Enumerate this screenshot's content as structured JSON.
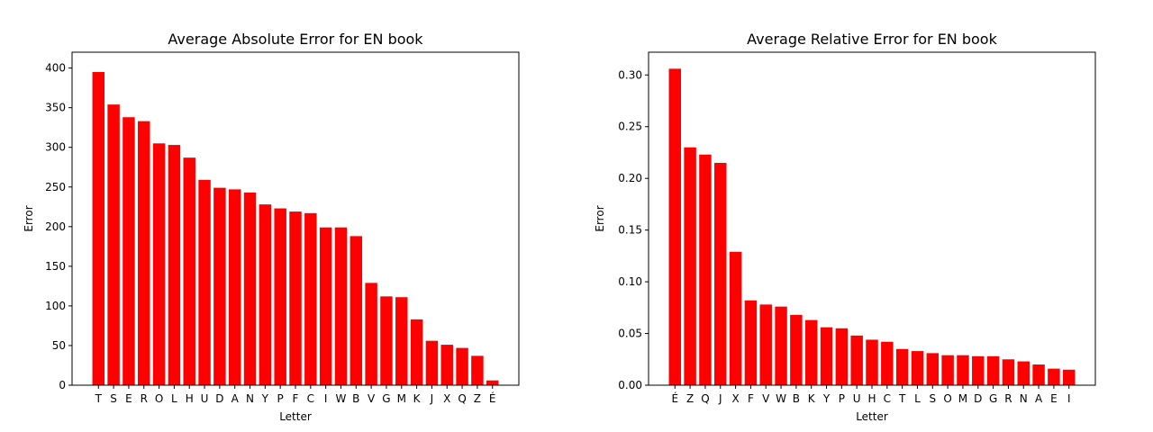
{
  "chart_data": [
    {
      "type": "bar",
      "title": "Average Absolute Error for EN book",
      "xlabel": "Letter",
      "ylabel": "Error",
      "color": "#ff0000",
      "ylim": [
        0,
        420
      ],
      "yticks": [
        0,
        50,
        100,
        150,
        200,
        250,
        300,
        350,
        400
      ],
      "ytick_labels": [
        "0",
        "50",
        "100",
        "150",
        "200",
        "250",
        "300",
        "350",
        "400"
      ],
      "categories": [
        "T",
        "S",
        "E",
        "R",
        "O",
        "L",
        "H",
        "U",
        "D",
        "A",
        "N",
        "Y",
        "P",
        "F",
        "C",
        "I",
        "W",
        "B",
        "V",
        "G",
        "M",
        "K",
        "J",
        "X",
        "Q",
        "Z",
        "É"
      ],
      "values": [
        395,
        354,
        338,
        333,
        305,
        303,
        287,
        259,
        249,
        247,
        243,
        228,
        223,
        219,
        217,
        199,
        199,
        188,
        129,
        112,
        111,
        83,
        56,
        51,
        47,
        37,
        6
      ]
    },
    {
      "type": "bar",
      "title": "Average Relative Error for EN book",
      "xlabel": "Letter",
      "ylabel": "Error",
      "color": "#ff0000",
      "ylim": [
        0,
        0.322
      ],
      "yticks": [
        0.0,
        0.05,
        0.1,
        0.15,
        0.2,
        0.25,
        0.3
      ],
      "ytick_labels": [
        "0.00",
        "0.05",
        "0.10",
        "0.15",
        "0.20",
        "0.25",
        "0.30"
      ],
      "categories": [
        "É",
        "Z",
        "Q",
        "J",
        "X",
        "F",
        "V",
        "W",
        "B",
        "K",
        "Y",
        "P",
        "U",
        "H",
        "C",
        "T",
        "L",
        "S",
        "O",
        "M",
        "D",
        "G",
        "R",
        "N",
        "A",
        "E",
        "I"
      ],
      "values": [
        0.306,
        0.23,
        0.223,
        0.215,
        0.129,
        0.082,
        0.078,
        0.076,
        0.068,
        0.063,
        0.056,
        0.055,
        0.048,
        0.044,
        0.042,
        0.035,
        0.033,
        0.031,
        0.029,
        0.029,
        0.028,
        0.028,
        0.025,
        0.023,
        0.02,
        0.016,
        0.015
      ]
    }
  ]
}
